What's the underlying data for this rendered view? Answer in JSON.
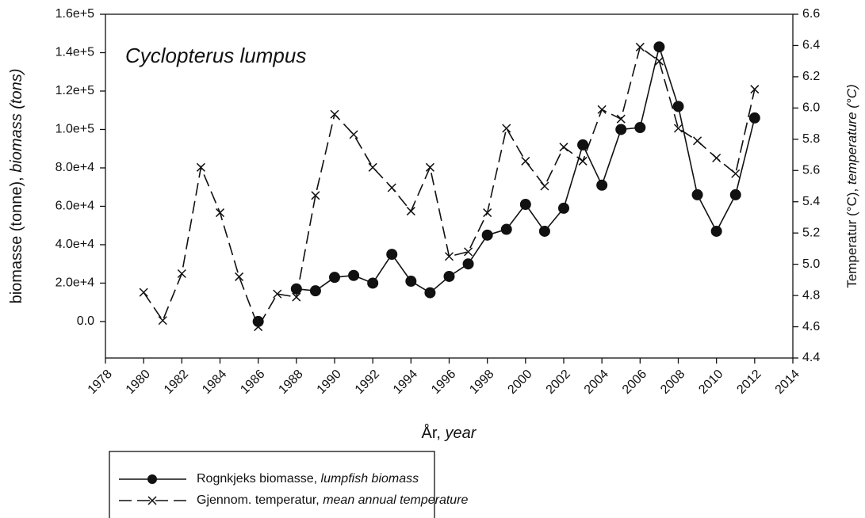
{
  "chart_data": {
    "type": "line",
    "title": "Cyclopterus lumpus",
    "x_label": "År, year",
    "y_label": "biomasse (tonne), biomass (tons)",
    "y2_label": "Temperatur (°C), temperature (°C)",
    "x": [
      1980,
      1981,
      1982,
      1983,
      1984,
      1985,
      1986,
      1987,
      1988,
      1989,
      1990,
      1991,
      1992,
      1993,
      1994,
      1995,
      1996,
      1997,
      1998,
      1999,
      2000,
      2001,
      2002,
      2003,
      2004,
      2005,
      2006,
      2007,
      2008,
      2009,
      2010,
      2011,
      2012
    ],
    "series": [
      {
        "name": "Rognkjeks biomasse, lumpfish biomass",
        "color": "#111111",
        "marker": "circle",
        "dash": false,
        "values": [
          null,
          null,
          null,
          null,
          null,
          null,
          0,
          null,
          17000,
          16000,
          23000,
          24000,
          20000,
          35000,
          21000,
          15000,
          23500,
          30000,
          45000,
          48000,
          61000,
          47000,
          59000,
          92000,
          71000,
          100000,
          101000,
          143000,
          112000,
          66000,
          47000,
          66000,
          106000
        ]
      },
      {
        "name": "Gjennom. temperatur, mean annual temperature",
        "color": "#111111",
        "marker": "x",
        "dash": true,
        "axis": "y2",
        "values": [
          4.82,
          4.64,
          4.94,
          5.62,
          5.33,
          4.92,
          4.6,
          4.81,
          4.79,
          5.44,
          5.96,
          5.83,
          5.62,
          5.49,
          5.34,
          5.62,
          5.05,
          5.08,
          5.33,
          5.87,
          5.66,
          5.5,
          5.75,
          5.66,
          5.99,
          5.93,
          6.39,
          6.3,
          5.87,
          5.79,
          5.68,
          5.58,
          6.12
        ]
      }
    ],
    "xlim": [
      1978,
      2014
    ],
    "xticks": [
      1978,
      1980,
      1982,
      1984,
      1986,
      1988,
      1990,
      1992,
      1994,
      1996,
      1998,
      2000,
      2002,
      2004,
      2006,
      2008,
      2010,
      2012,
      2014
    ],
    "ylim": [
      -19000,
      160000
    ],
    "yticks": [
      {
        "value": 0,
        "label": "0.0"
      },
      {
        "value": 20000,
        "label": "2.0e+4"
      },
      {
        "value": 40000,
        "label": "4.0e+4"
      },
      {
        "value": 60000,
        "label": "6.0e+4"
      },
      {
        "value": 80000,
        "label": "8.0e+4"
      },
      {
        "value": 100000,
        "label": "1.0e+5"
      },
      {
        "value": 120000,
        "label": "1.2e+5"
      },
      {
        "value": 140000,
        "label": "1.4e+5"
      },
      {
        "value": 160000,
        "label": "1.6e+5"
      }
    ],
    "y2lim": [
      4.4,
      6.6
    ],
    "y2ticks": [
      4.4,
      4.6,
      4.8,
      {
        "value": 5,
        "label": "5.0"
      },
      5.2,
      5.4,
      5.6,
      5.8,
      {
        "value": 6,
        "label": "6.0"
      },
      6.2,
      6.4,
      6.6
    ],
    "grid": false
  }
}
